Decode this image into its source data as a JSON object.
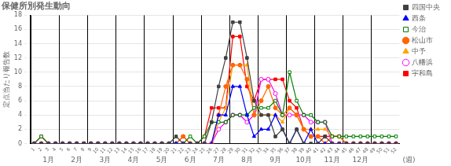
{
  "chart_data": {
    "type": "line",
    "title": "保健所別発生動向",
    "ylabel": "定点当たり報告数",
    "xlabel": "(週)",
    "x": [
      1,
      2,
      3,
      4,
      5,
      6,
      7,
      8,
      9,
      10,
      11,
      12,
      13,
      14,
      15,
      16,
      17,
      18,
      19,
      20,
      21,
      22,
      23,
      24,
      25,
      26,
      27,
      28,
      29,
      30,
      31,
      32,
      33,
      34,
      35,
      36,
      37,
      38,
      39,
      40,
      41,
      42,
      43,
      44,
      45,
      46,
      47,
      48,
      49,
      50,
      51,
      52
    ],
    "xlim": [
      0.5,
      52.5
    ],
    "xticks": [
      1,
      2,
      3,
      4,
      5,
      6,
      7,
      8,
      9,
      10,
      11,
      12,
      13,
      14,
      15,
      16,
      17,
      18,
      19,
      20,
      21,
      22,
      23,
      24,
      25,
      26,
      27,
      28,
      29,
      30,
      31,
      32,
      33,
      34,
      35,
      36,
      37,
      38,
      39,
      40,
      41,
      42,
      43,
      44,
      45,
      46,
      47,
      48,
      49,
      50,
      51,
      52
    ],
    "ylim": [
      0,
      18
    ],
    "yticks": [
      0,
      2,
      4,
      6,
      8,
      10,
      12,
      14,
      16,
      18
    ],
    "grid": "y",
    "legend": "right",
    "vlines": [
      0.5,
      4.5,
      8.5,
      12.5,
      16.5,
      20.5,
      24.5,
      28.5,
      32.5,
      36.5,
      40.5,
      44.5,
      48.5,
      52.5
    ],
    "annotations": [
      {
        "text": "1月",
        "x": 3
      },
      {
        "text": "2月",
        "x": 7
      },
      {
        "text": "3月",
        "x": 11
      },
      {
        "text": "4月",
        "x": 15
      },
      {
        "text": "5月",
        "x": 19
      },
      {
        "text": "6月",
        "x": 23
      },
      {
        "text": "7月",
        "x": 27
      },
      {
        "text": "8月",
        "x": 31
      },
      {
        "text": "9月",
        "x": 35
      },
      {
        "text": "10月",
        "x": 39
      },
      {
        "text": "11月",
        "x": 43
      },
      {
        "text": "12月",
        "x": 47
      }
    ],
    "series": [
      {
        "name": "四国中央",
        "color": "#404040",
        "marker": "square",
        "values": [
          0,
          0,
          0,
          0,
          0,
          0,
          0,
          0,
          0,
          0,
          0,
          0,
          0,
          0,
          0,
          0,
          0,
          0,
          0,
          0,
          1,
          0,
          0,
          0,
          0,
          3,
          8,
          12,
          17,
          17,
          12,
          6,
          4,
          4,
          1,
          2,
          0,
          2,
          0,
          0,
          0,
          1,
          0,
          0,
          0,
          0,
          0,
          0,
          0,
          0,
          0,
          0
        ]
      },
      {
        "name": "西条",
        "color": "#0000ff",
        "marker": "triangle",
        "values": [
          0,
          0,
          0,
          0,
          0,
          0,
          0,
          0,
          0,
          0,
          0,
          0,
          0,
          0,
          0,
          0,
          0,
          0,
          0,
          0,
          0,
          0,
          0,
          0,
          0,
          0,
          4,
          4,
          8,
          8,
          4,
          1,
          2,
          2,
          4,
          2,
          0,
          2,
          0,
          2,
          0,
          0,
          0,
          0,
          0,
          0,
          0,
          0,
          0,
          0,
          0,
          0
        ]
      },
      {
        "name": "今治",
        "color": "#008000",
        "marker": "open_square",
        "values": [
          0,
          1,
          0,
          0,
          0,
          0,
          0,
          0,
          0,
          0,
          0,
          0,
          0,
          0,
          0,
          0,
          0,
          0,
          0,
          0,
          0,
          0,
          1,
          0,
          1,
          3,
          3,
          3,
          4,
          4,
          4,
          5,
          5,
          5,
          6,
          4,
          10,
          6,
          4,
          4,
          3,
          3,
          1,
          1,
          1,
          1,
          1,
          1,
          1,
          1,
          1,
          1
        ]
      },
      {
        "name": "松山市",
        "color": "#ff6600",
        "marker": "circle",
        "values": [
          0,
          0,
          0,
          0,
          0,
          0,
          0,
          0,
          0,
          0,
          0,
          0,
          0,
          0,
          0,
          0,
          0,
          0,
          0,
          0,
          0,
          1,
          0,
          0,
          0,
          0,
          4,
          8,
          11,
          11,
          9,
          4,
          6,
          8,
          5,
          4,
          5,
          4,
          2,
          1,
          1,
          0,
          1,
          1,
          0,
          0,
          0,
          0,
          0,
          0,
          0,
          0
        ]
      },
      {
        "name": "中予",
        "color": "#ffa500",
        "marker": "triangle",
        "values": [
          0,
          0,
          0,
          0,
          0,
          0,
          0,
          0,
          0,
          0,
          0,
          0,
          0,
          0,
          0,
          0,
          0,
          0,
          0,
          0,
          0,
          0,
          0,
          0,
          0,
          0,
          3,
          5,
          11,
          11,
          11,
          4,
          4,
          4,
          4,
          3,
          5,
          4,
          2,
          2,
          2,
          2,
          1,
          1,
          0,
          0,
          0,
          0,
          0,
          0,
          0,
          0
        ]
      },
      {
        "name": "八幡浜",
        "color": "#ff00ff",
        "marker": "open_circle",
        "values": [
          0,
          0,
          0,
          0,
          0,
          0,
          0,
          0,
          0,
          0,
          0,
          0,
          0,
          0,
          0,
          0,
          0,
          0,
          0,
          0,
          0,
          0,
          0,
          0,
          0,
          0,
          2,
          3,
          4,
          4,
          3,
          4,
          9,
          9,
          7,
          4,
          4,
          4,
          4,
          3,
          3,
          3,
          0,
          0,
          0,
          0,
          0,
          0,
          0,
          0,
          0,
          0
        ]
      },
      {
        "name": "宇和島",
        "color": "#ff0000",
        "marker": "square",
        "values": [
          0,
          1,
          0,
          0,
          0,
          0,
          0,
          0,
          0,
          0,
          0,
          0,
          0,
          0,
          0,
          0,
          0,
          0,
          0,
          0,
          0,
          1,
          0,
          0,
          1,
          5,
          5,
          5,
          15,
          15,
          8,
          6,
          9,
          9,
          9,
          9,
          6,
          5,
          2,
          1,
          1,
          1,
          1,
          1,
          0,
          0,
          0,
          0,
          0,
          0,
          0,
          0
        ]
      }
    ]
  }
}
